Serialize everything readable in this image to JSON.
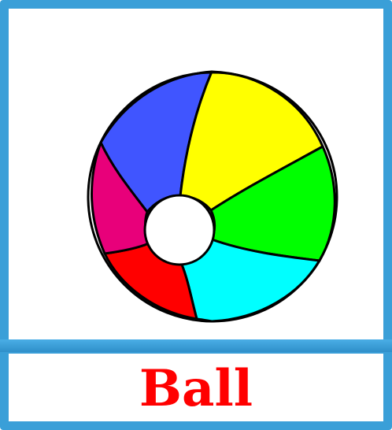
{
  "card": {
    "word": "Ball",
    "picture": "beach-ball"
  },
  "colors": {
    "frame": "#3a9fd8",
    "word": "#ff0000",
    "panels": [
      "#4055ff",
      "#ffff00",
      "#00ff00",
      "#00ffff",
      "#ff0000",
      "#e8007a"
    ],
    "hub": "#ffffff",
    "outline": "#000000"
  }
}
